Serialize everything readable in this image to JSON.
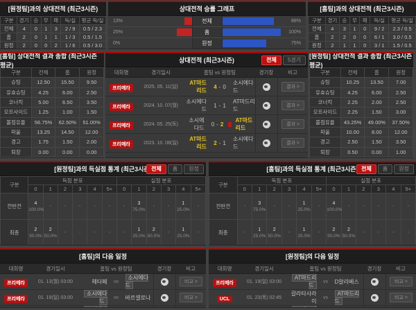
{
  "colors": {
    "accent_red": "#ae0606",
    "bar_red": "#c22424",
    "bar_blue": "#2d55c4",
    "highlight_yellow": "#e7c51e",
    "badge_red": "#b31212"
  },
  "top_left_record": {
    "title": "[원정팀]과의 상대전적 (최근3시즌)",
    "headers": [
      "구분",
      "경기",
      "승",
      "무",
      "패",
      "득/실",
      "평균 득/실"
    ],
    "rows": [
      {
        "label": "전체",
        "cells": [
          "4",
          "0",
          "1",
          "3",
          "2 / 9",
          "0.5 / 2.3"
        ]
      },
      {
        "label": "홈",
        "cells": [
          "2",
          "0",
          "1",
          "1",
          "1 / 3",
          "0.5 / 1.5"
        ]
      },
      {
        "label": "원정",
        "cells": [
          "2",
          "0",
          "0",
          "2",
          "1 / 6",
          "0.5 / 3.0"
        ]
      }
    ]
  },
  "win_rate_graph": {
    "title": "상대전적 승률 그래프",
    "rows": [
      {
        "label": "전체",
        "home_pct": "13%",
        "home_val": 13,
        "away_pct": "88%",
        "away_val": 88
      },
      {
        "label": "홈",
        "home_pct": "25%",
        "home_val": 25,
        "away_pct": "100%",
        "away_val": 100
      },
      {
        "label": "원정",
        "home_pct": "0%",
        "home_val": 0,
        "away_pct": "75%",
        "away_val": 75
      }
    ]
  },
  "top_right_record": {
    "title": "[홈팀]과의 상대전적 (최근3시즌)",
    "headers": [
      "구분",
      "경기",
      "승",
      "무",
      "패",
      "득/실",
      "평균 득/실"
    ],
    "rows": [
      {
        "label": "전체",
        "cells": [
          "4",
          "3",
          "1",
          "0",
          "9 / 2",
          "2.3 / 0.5"
        ]
      },
      {
        "label": "홈",
        "cells": [
          "2",
          "2",
          "0",
          "0",
          "6 / 1",
          "3.0 / 0.5"
        ]
      },
      {
        "label": "원정",
        "cells": [
          "2",
          "1",
          "1",
          "0",
          "3 / 1",
          "1.5 / 0.5"
        ]
      }
    ]
  },
  "home_summary": {
    "title": "[홈팀] 상대전적 결과 종합 (최근3시즌 평균)",
    "headers": [
      "구분",
      "전체",
      "홈",
      "원정"
    ],
    "rows": [
      [
        "슈팅",
        "12.50",
        "15.50",
        "9.50"
      ],
      [
        "유효슈팅",
        "4.25",
        "6.00",
        "2.50"
      ],
      [
        "코너킥",
        "5.00",
        "6.50",
        "3.50"
      ],
      [
        "오프사이드",
        "1.25",
        "1.00",
        "1.50"
      ],
      [
        "볼점유율",
        "56.75%",
        "62.50%",
        "51.00%"
      ],
      [
        "파울",
        "13.25",
        "14.50",
        "12.00"
      ],
      [
        "경고",
        "1.75",
        "1.50",
        "2.00"
      ],
      [
        "퇴장",
        "0.00",
        "0.00",
        "0.00"
      ]
    ]
  },
  "away_summary": {
    "title": "[원정팀] 상대전적 결과 종합 (최근3시즌 평균)",
    "headers": [
      "구분",
      "전체",
      "홈",
      "원정"
    ],
    "rows": [
      [
        "슈팅",
        "10.25",
        "13.50",
        "7.00"
      ],
      [
        "유효슈팅",
        "4.25",
        "6.00",
        "2.50"
      ],
      [
        "코너킥",
        "2.25",
        "2.00",
        "2.50"
      ],
      [
        "오프사이드",
        "2.25",
        "1.50",
        "3.00"
      ],
      [
        "볼점유율",
        "43.25%",
        "49.00%",
        "37.50%"
      ],
      [
        "파울",
        "10.00",
        "8.00",
        "12.00"
      ],
      [
        "경고",
        "2.50",
        "1.50",
        "3.50"
      ],
      [
        "퇴장",
        "0.50",
        "0.00",
        "1.00"
      ]
    ]
  },
  "h2h": {
    "title": "상대전적 (최근3시즌)",
    "filter_buttons": [
      {
        "label": "전체",
        "active": true
      },
      {
        "label": "5경기",
        "active": false
      }
    ],
    "headers": {
      "league": "대회명",
      "datetime": "경기일시",
      "match": "홈팀  vs  원정팀",
      "venue": "경기장",
      "note": "비고"
    },
    "action_label": "결과 >",
    "rows": [
      {
        "league": "프리메라",
        "date": "2025. 05. 11(일)",
        "home": "AT마드리드",
        "home_score": "4",
        "away_score": "0",
        "away": "소시에다드",
        "winner": "home",
        "red_card": false
      },
      {
        "league": "프리메라",
        "date": "2024. 10. 07(월)",
        "home": "소시에다드",
        "home_score": "1",
        "away_score": "1",
        "away": "AT마드리드",
        "winner": null,
        "red_card": false
      },
      {
        "league": "프리메라",
        "date": "2024. 05. 25(토)",
        "home": "소시에다드",
        "home_score": "0",
        "away_score": "2",
        "away": "AT마드리드",
        "winner": "away",
        "red_card": true
      },
      {
        "league": "프리메라",
        "date": "2023. 10. 08(일)",
        "home": "AT마드리드",
        "home_score": "2",
        "away_score": "1",
        "away": "소시에다드",
        "winner": "home",
        "red_card": false
      }
    ]
  },
  "goal_stats_left": {
    "title": "[원정팀]과의 득실점 통계 (최근3시즌)",
    "filter_buttons": [
      {
        "label": "전체",
        "active": true
      },
      {
        "label": "홈",
        "active": false
      },
      {
        "label": "원정",
        "active": false
      }
    ],
    "col_label": "구분",
    "groups": [
      "득점 분포",
      "실점 분포"
    ],
    "cols": [
      "0",
      "1",
      "2",
      "3",
      "4",
      "5+"
    ],
    "rows": [
      {
        "label": "전반전",
        "scored": [
          [
            "4",
            "100.0%"
          ],
          null,
          null,
          null,
          null,
          null
        ],
        "conceded": [
          null,
          [
            "3",
            "75.0%"
          ],
          null,
          null,
          [
            "1",
            "25.0%"
          ],
          null
        ]
      },
      {
        "label": "최종",
        "scored": [
          [
            "2",
            "50.0%"
          ],
          [
            "2",
            "50.0%"
          ],
          null,
          null,
          null,
          null
        ],
        "conceded": [
          null,
          [
            "1",
            "25.0%"
          ],
          [
            "2",
            "50.0%"
          ],
          null,
          [
            "1",
            "25.0%"
          ],
          null
        ]
      }
    ]
  },
  "goal_stats_right": {
    "title": "[홈팀]과의 득실점 통계 (최근3시즌)",
    "filter_buttons": [
      {
        "label": "전체",
        "active": true
      },
      {
        "label": "홈",
        "active": false
      },
      {
        "label": "원정",
        "active": false
      }
    ],
    "col_label": "구분",
    "groups": [
      "득점 분포",
      "실점 분포"
    ],
    "cols": [
      "0",
      "1",
      "2",
      "3",
      "4",
      "5+"
    ],
    "rows": [
      {
        "label": "전반전",
        "scored": [
          null,
          [
            "3",
            "75.0%"
          ],
          null,
          null,
          [
            "1",
            "25.0%"
          ],
          null
        ],
        "conceded": [
          [
            "4",
            "100.0%"
          ],
          null,
          null,
          null,
          null,
          null
        ]
      },
      {
        "label": "최종",
        "scored": [
          null,
          [
            "1",
            "25.0%"
          ],
          [
            "2",
            "50.0%"
          ],
          null,
          [
            "1",
            "25.0%"
          ],
          null
        ],
        "conceded": [
          [
            "2",
            "50.0%"
          ],
          [
            "2",
            "50.0%"
          ],
          null,
          null,
          null,
          null
        ]
      }
    ]
  },
  "schedule_left": {
    "title": "[홈팀]의 다음 일정",
    "headers": {
      "league": "대회명",
      "datetime": "경기일시",
      "match": "홈팀  vs  원정팀",
      "venue": "경기장",
      "note": "비고"
    },
    "action_label": "비교 >",
    "rows": [
      {
        "league": "프리메라",
        "date": "01. 13(월) 03:00",
        "home": "헤타페",
        "home_boxed": false,
        "away": "소시에다드",
        "away_boxed": true
      },
      {
        "league": "프리메라",
        "date": "01. 19(일) 03:00",
        "home": "소시에다드",
        "home_boxed": true,
        "away": "바르셀로나",
        "away_boxed": false
      },
      {
        "league": "프리메라",
        "date": "01. 26(일) 03:00",
        "home": "소시에다드",
        "home_boxed": true,
        "away": "셀타비고",
        "away_boxed": false
      }
    ]
  },
  "schedule_right": {
    "title": "[원정팀]의 다음 일정",
    "headers": {
      "league": "대회명",
      "datetime": "경기일시",
      "match": "홈팀  vs  원정팀",
      "venue": "경기장",
      "note": "비고"
    },
    "action_label": "비교 >",
    "rows": [
      {
        "league": "프리메라",
        "date": "01. 19(일) 03:00",
        "home": "AT마드리드",
        "home_boxed": true,
        "away": "D알라베스",
        "away_boxed": false
      },
      {
        "league": "UCL",
        "date": "01. 23(목) 02:45",
        "home": "갈라타사라이",
        "home_boxed": false,
        "away": "AT마드리드",
        "away_boxed": true
      },
      {
        "league": "프리메라",
        "date": "01. 26(일) 03:00",
        "home": "AT마드리드",
        "home_boxed": true,
        "away": "마요르카",
        "away_boxed": false
      }
    ]
  }
}
